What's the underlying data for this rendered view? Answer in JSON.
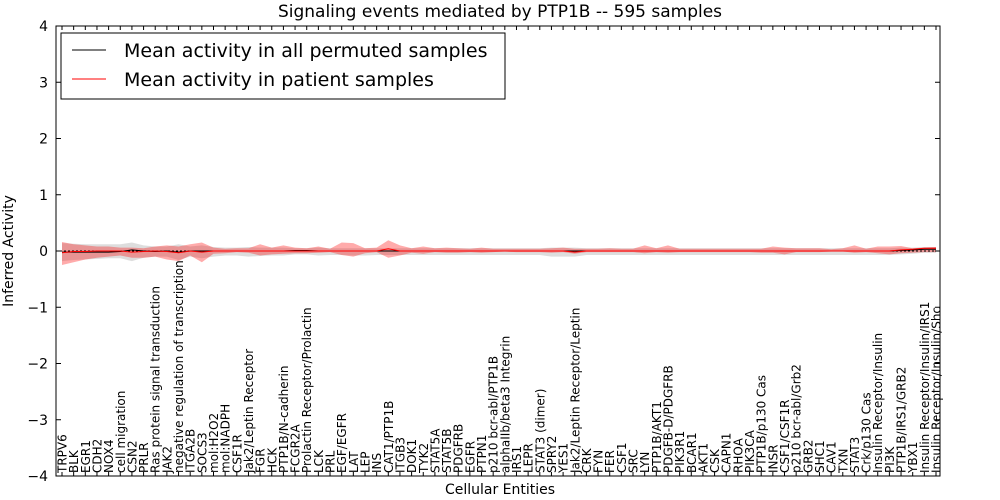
{
  "chart_data": {
    "type": "line",
    "title": "Signaling events mediated by PTP1B -- 595 samples",
    "xlabel": "Cellular Entities",
    "ylabel": "Inferred Activity",
    "ylim": [
      -4,
      4
    ],
    "yticks": [
      -4,
      -3,
      -2,
      -1,
      0,
      1,
      2,
      3,
      4
    ],
    "ytick_labels": [
      "−4",
      "−3",
      "−2",
      "−1",
      "0",
      "1",
      "2",
      "3",
      "4"
    ],
    "legend": {
      "position": "top-left",
      "entries": [
        {
          "label": "Mean activity in all permuted samples",
          "color": "#000000"
        },
        {
          "label": "Mean activity in patient samples",
          "color": "#ff0000"
        }
      ]
    },
    "categories": [
      "TRPV6",
      "BLK",
      "EGR1",
      "CDH2",
      "NOX4",
      "cell migration",
      "CSN2",
      "PRLR",
      "Ras protein signal transduction",
      "JAK2",
      "negative regulation of transcription",
      "ITGA2B",
      "SOCS3",
      "mol:H2O2",
      "mol:NADPH",
      "CSF1R",
      "Jak2/Leptin Receptor",
      "FGR",
      "HCK",
      "PTP1B/N-cadherin",
      "FCGR2A",
      "Prolactin Receptor/Prolactin",
      "LCK",
      "PRL",
      "EGF/EGFR",
      "LAT",
      "LEP",
      "INS",
      "CAT1/PTP1B",
      "ITGB3",
      "DOK1",
      "TYK2",
      "STAT5A",
      "STAT5B",
      "PDGFRB",
      "EGFR",
      "PTPN1",
      "p210 bcr-abl/PTP1B",
      "alphaIIb/beta3 Integrin",
      "IRS1",
      "LEPR",
      "STAT3 (dimer)",
      "SPRY2",
      "YES1",
      "Jak2/Leptin Receptor/Leptin",
      "CRK",
      "FYN",
      "FER",
      "CSF1",
      "SRC",
      "LYN",
      "PTP1B/AKT1",
      "PDGFB-D/PDGFRB",
      "PIK3R1",
      "BCAR1",
      "AKT1",
      "CSK",
      "CAPN1",
      "RHOA",
      "PIK3CA",
      "PTP1B/p130 Cas",
      "INSR",
      "CSF1/CSF1R",
      "p210 bcr-abl/Grb2",
      "GRB2",
      "SHC1",
      "CAV1",
      "TXN",
      "STAT3",
      "Crk/p130 Cas",
      "Insulin Receptor/Insulin",
      "PI3K",
      "PTP1B/IRS1/GRB2",
      "YBX1",
      "Insulin Receptor/Insulin/IRS1",
      "Insulin Receptor/Insulin/Shc"
    ],
    "series": [
      {
        "name": "Mean activity in all permuted samples",
        "color": "#000000",
        "values": [
          -0.02,
          -0.02,
          -0.02,
          -0.02,
          -0.02,
          -0.01,
          0.02,
          0.0,
          -0.01,
          0.0,
          -0.02,
          0.0,
          0.0,
          0.0,
          0.0,
          0.0,
          0.0,
          0.0,
          0.0,
          0.0,
          0.01,
          0.01,
          0.0,
          0.0,
          0.0,
          0.0,
          0.0,
          0.0,
          0.0,
          0.0,
          0.0,
          0.0,
          0.0,
          0.0,
          0.0,
          0.0,
          0.0,
          0.0,
          0.0,
          0.0,
          0.0,
          0.0,
          0.0,
          0.0,
          0.0,
          0.0,
          0.0,
          0.0,
          0.0,
          0.0,
          0.0,
          0.0,
          0.0,
          0.0,
          0.0,
          0.0,
          0.0,
          0.0,
          0.0,
          0.0,
          0.0,
          0.0,
          0.0,
          0.0,
          0.0,
          0.0,
          0.0,
          0.0,
          0.0,
          0.0,
          0.0,
          0.0,
          0.01,
          0.02,
          0.03,
          0.03
        ],
        "band_lower": [
          -0.18,
          -0.16,
          -0.15,
          -0.14,
          -0.13,
          -0.13,
          -0.18,
          -0.12,
          -0.1,
          -0.1,
          -0.16,
          -0.1,
          -0.13,
          -0.1,
          -0.08,
          -0.08,
          -0.1,
          -0.09,
          -0.08,
          -0.08,
          -0.06,
          -0.06,
          -0.08,
          -0.07,
          -0.07,
          -0.08,
          -0.08,
          -0.07,
          -0.07,
          -0.07,
          -0.07,
          -0.07,
          -0.07,
          -0.07,
          -0.07,
          -0.07,
          -0.07,
          -0.07,
          -0.07,
          -0.07,
          -0.07,
          -0.07,
          -0.1,
          -0.1,
          -0.1,
          -0.07,
          -0.07,
          -0.07,
          -0.07,
          -0.07,
          -0.07,
          -0.07,
          -0.07,
          -0.07,
          -0.07,
          -0.07,
          -0.07,
          -0.07,
          -0.07,
          -0.07,
          -0.07,
          -0.07,
          -0.07,
          -0.07,
          -0.07,
          -0.07,
          -0.07,
          -0.07,
          -0.07,
          -0.07,
          -0.07,
          -0.07,
          -0.06,
          -0.05,
          -0.03,
          -0.03
        ],
        "band_upper": [
          0.14,
          0.13,
          0.12,
          0.12,
          0.12,
          0.12,
          0.15,
          0.1,
          0.08,
          0.08,
          0.12,
          0.08,
          0.1,
          0.07,
          0.06,
          0.06,
          0.07,
          0.06,
          0.06,
          0.06,
          0.05,
          0.05,
          0.06,
          0.05,
          0.05,
          0.05,
          0.05,
          0.05,
          0.05,
          0.05,
          0.05,
          0.05,
          0.05,
          0.05,
          0.05,
          0.05,
          0.05,
          0.05,
          0.05,
          0.05,
          0.05,
          0.05,
          0.06,
          0.06,
          0.06,
          0.05,
          0.05,
          0.05,
          0.05,
          0.05,
          0.05,
          0.05,
          0.05,
          0.05,
          0.05,
          0.05,
          0.05,
          0.05,
          0.05,
          0.05,
          0.05,
          0.05,
          0.05,
          0.05,
          0.05,
          0.05,
          0.05,
          0.05,
          0.05,
          0.05,
          0.05,
          0.05,
          0.06,
          0.06,
          0.07,
          0.07
        ]
      },
      {
        "name": "Mean activity in patient samples",
        "color": "#ff0000",
        "values": [
          -0.03,
          -0.01,
          -0.01,
          0.0,
          0.0,
          0.0,
          -0.02,
          -0.01,
          0.0,
          -0.01,
          -0.03,
          0.0,
          -0.02,
          0.0,
          0.0,
          0.0,
          0.0,
          0.0,
          0.0,
          0.0,
          0.0,
          0.0,
          0.0,
          0.0,
          0.0,
          0.0,
          0.0,
          0.0,
          0.04,
          0.0,
          0.0,
          0.0,
          0.0,
          0.0,
          0.0,
          0.0,
          0.0,
          0.0,
          0.0,
          0.0,
          0.0,
          0.0,
          0.0,
          0.0,
          -0.02,
          0.0,
          0.0,
          0.0,
          0.0,
          0.0,
          0.0,
          0.0,
          0.0,
          0.0,
          0.0,
          0.0,
          0.0,
          0.0,
          0.0,
          0.0,
          0.0,
          0.0,
          0.0,
          0.0,
          0.0,
          0.0,
          0.0,
          0.0,
          0.0,
          0.0,
          0.0,
          0.0,
          0.02,
          0.03,
          0.05,
          0.05
        ],
        "band_lower": [
          -0.25,
          -0.2,
          -0.15,
          -0.12,
          -0.1,
          -0.08,
          -0.12,
          -0.12,
          -0.1,
          -0.15,
          -0.18,
          -0.08,
          -0.2,
          -0.05,
          -0.04,
          -0.02,
          -0.03,
          -0.08,
          -0.06,
          -0.05,
          -0.04,
          -0.04,
          -0.03,
          -0.02,
          -0.07,
          -0.1,
          -0.04,
          -0.02,
          -0.12,
          -0.08,
          -0.03,
          -0.05,
          -0.02,
          -0.03,
          -0.03,
          -0.02,
          -0.03,
          -0.02,
          -0.01,
          -0.02,
          -0.02,
          -0.02,
          -0.03,
          -0.02,
          -0.05,
          -0.02,
          -0.02,
          -0.02,
          -0.02,
          -0.02,
          -0.04,
          -0.02,
          -0.03,
          -0.02,
          -0.02,
          -0.02,
          -0.02,
          -0.02,
          -0.02,
          -0.02,
          -0.03,
          -0.03,
          -0.06,
          -0.02,
          -0.02,
          -0.02,
          -0.01,
          -0.01,
          -0.03,
          -0.02,
          -0.04,
          -0.06,
          -0.04,
          -0.03,
          -0.02,
          -0.02
        ],
        "band_upper": [
          0.16,
          0.12,
          0.1,
          0.08,
          0.08,
          0.06,
          0.06,
          0.05,
          0.08,
          0.1,
          0.08,
          0.12,
          0.15,
          0.06,
          0.04,
          0.05,
          0.05,
          0.12,
          0.06,
          0.1,
          0.06,
          0.05,
          0.08,
          0.04,
          0.15,
          0.14,
          0.05,
          0.06,
          0.19,
          0.1,
          0.05,
          0.08,
          0.05,
          0.06,
          0.05,
          0.04,
          0.06,
          0.04,
          0.04,
          0.04,
          0.04,
          0.04,
          0.05,
          0.06,
          0.04,
          0.04,
          0.04,
          0.05,
          0.04,
          0.04,
          0.1,
          0.05,
          0.1,
          0.04,
          0.04,
          0.04,
          0.04,
          0.04,
          0.04,
          0.04,
          0.04,
          0.08,
          0.06,
          0.05,
          0.05,
          0.05,
          0.03,
          0.05,
          0.1,
          0.04,
          0.08,
          0.08,
          0.09,
          0.05,
          0.06,
          0.07
        ]
      }
    ]
  }
}
